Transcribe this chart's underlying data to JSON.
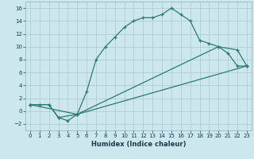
{
  "xlabel": "Humidex (Indice chaleur)",
  "bg_color": "#cce8ee",
  "grid_color": "#b0cdd4",
  "line_color": "#2a7a70",
  "xlim": [
    -0.5,
    23.5
  ],
  "ylim": [
    -3,
    17
  ],
  "xticks": [
    0,
    1,
    2,
    3,
    4,
    5,
    6,
    7,
    8,
    9,
    10,
    11,
    12,
    13,
    14,
    15,
    16,
    17,
    18,
    19,
    20,
    21,
    22,
    23
  ],
  "yticks": [
    -2,
    0,
    2,
    4,
    6,
    8,
    10,
    12,
    14,
    16
  ],
  "line1_x": [
    0,
    1,
    2,
    3,
    4,
    5,
    6,
    7,
    8,
    9,
    10,
    11,
    12,
    13,
    14,
    15,
    16,
    17,
    18,
    19,
    20,
    21,
    22,
    23
  ],
  "line1_y": [
    1,
    1,
    1,
    -1,
    -1.5,
    -0.5,
    3,
    8,
    10,
    11.5,
    13,
    14,
    14.5,
    14.5,
    15,
    16,
    15,
    14,
    11,
    10.5,
    10,
    9,
    7,
    7
  ],
  "line2_x": [
    0,
    2,
    3,
    5,
    20,
    22,
    23
  ],
  "line2_y": [
    1,
    1,
    -1,
    -0.5,
    10,
    9.5,
    7
  ],
  "line3_x": [
    0,
    5,
    23
  ],
  "line3_y": [
    1,
    -0.5,
    7
  ]
}
